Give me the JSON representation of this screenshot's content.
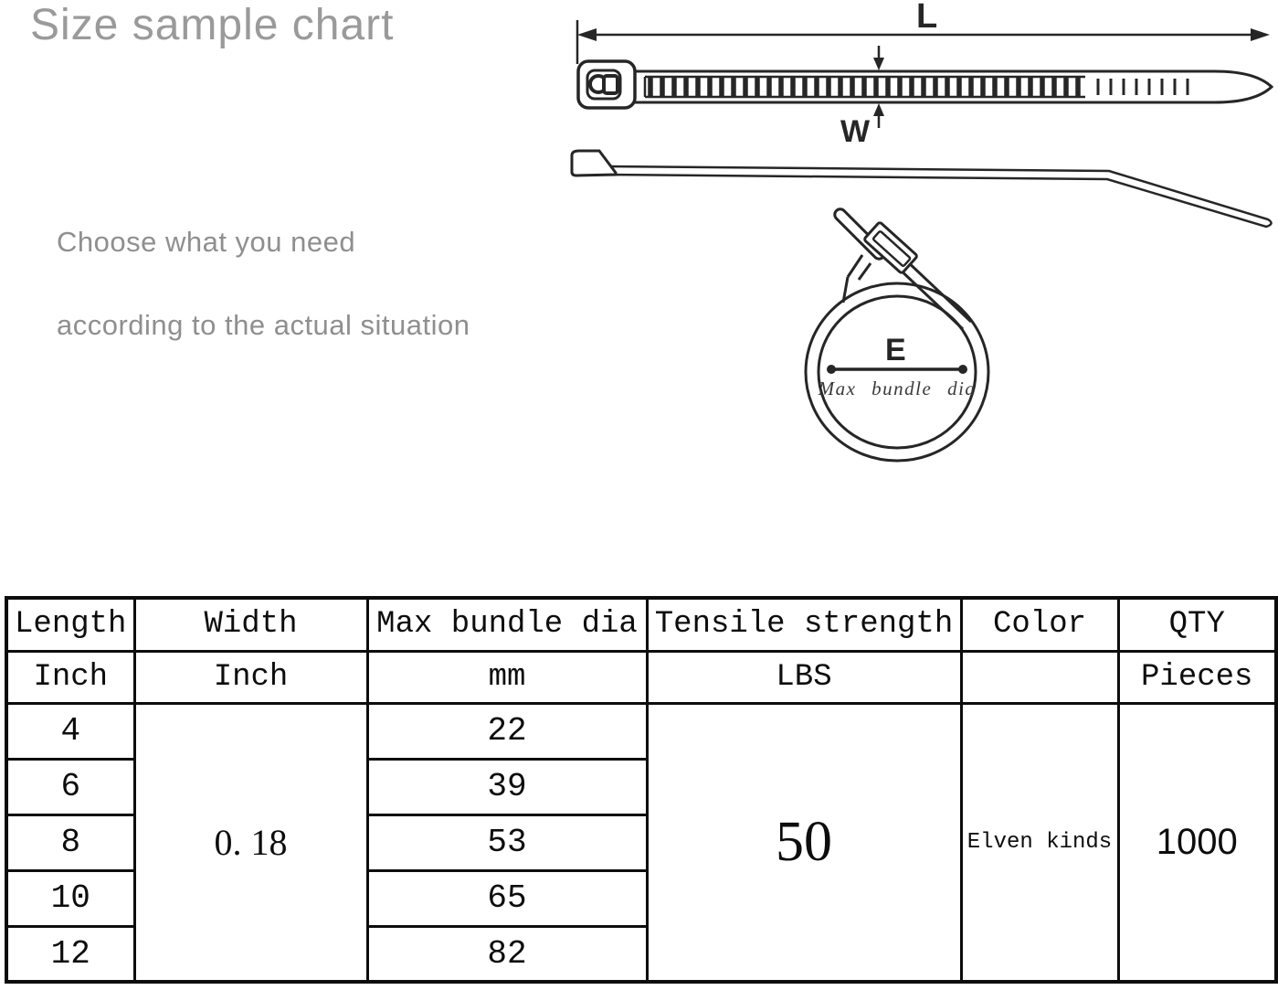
{
  "title": "Size sample chart",
  "subtitle": {
    "line1": "Choose what you need",
    "line2": "according to the actual situation"
  },
  "diagram": {
    "length_label": "L",
    "width_label": "W",
    "diameter_label": "E",
    "diameter_caption": "Max bundle dia"
  },
  "colors": {
    "muted_text": "#9a9a9a",
    "ink": "#0d0d0d",
    "line": "#262626"
  },
  "table": {
    "columns": [
      {
        "header": "Length",
        "unit": "Inch"
      },
      {
        "header": "Width",
        "unit": "Inch"
      },
      {
        "header": "Max bundle dia",
        "unit": "mm"
      },
      {
        "header": "Tensile strength",
        "unit": "LBS"
      },
      {
        "header": "Color",
        "unit": ""
      },
      {
        "header": "QTY",
        "unit": "Pieces"
      }
    ],
    "rows": {
      "length_inch": [
        "4",
        "6",
        "8",
        "10",
        "12"
      ],
      "max_bundle_dia_mm": [
        "22",
        "39",
        "53",
        "65",
        "82"
      ]
    },
    "width_inch": "0. 18",
    "tensile_strength_lbs": "50",
    "color": "Elven kinds",
    "qty_pieces": "1000"
  },
  "chart_data": {
    "type": "table",
    "title": "Size sample chart",
    "columns": [
      "Length (Inch)",
      "Width (Inch)",
      "Max bundle dia (mm)",
      "Tensile strength (LBS)",
      "Color",
      "QTY (Pieces)"
    ],
    "rows": [
      [
        "4",
        "0. 18",
        "22",
        "50",
        "Elven kinds",
        "1000"
      ],
      [
        "6",
        "0. 18",
        "39",
        "50",
        "Elven kinds",
        "1000"
      ],
      [
        "8",
        "0. 18",
        "53",
        "50",
        "Elven kinds",
        "1000"
      ],
      [
        "10",
        "0. 18",
        "65",
        "50",
        "Elven kinds",
        "1000"
      ],
      [
        "12",
        "0. 18",
        "82",
        "50",
        "Elven kinds",
        "1000"
      ]
    ]
  }
}
